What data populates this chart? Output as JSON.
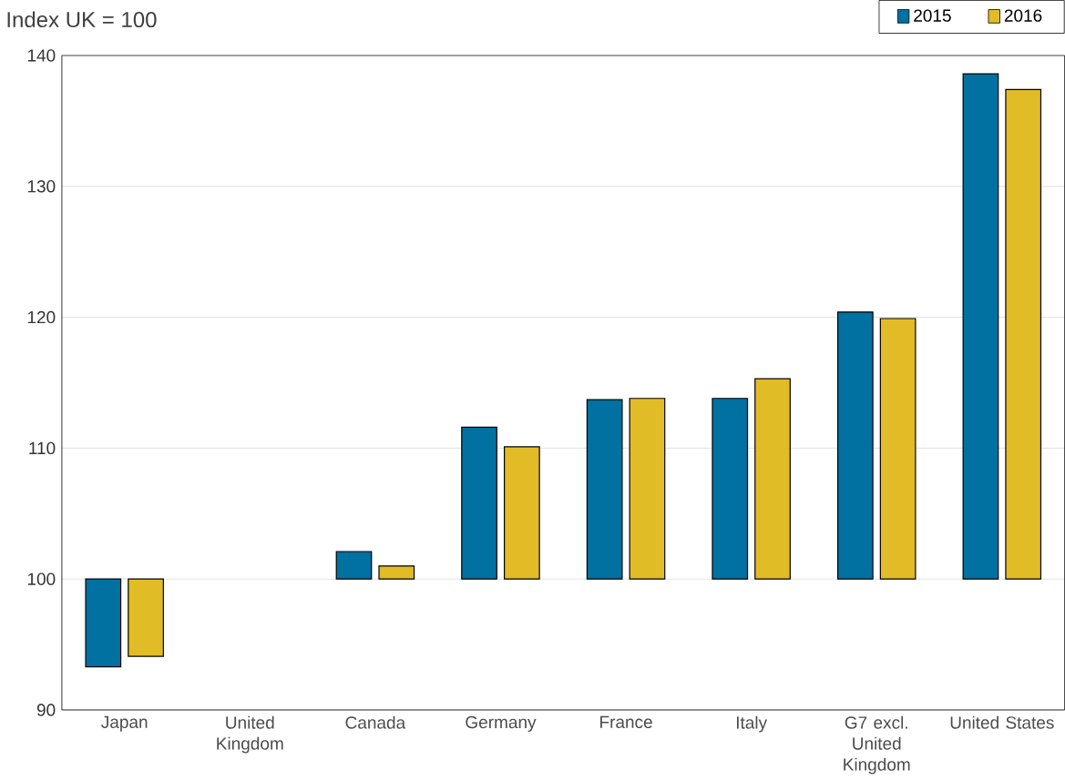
{
  "chart_data": {
    "type": "bar",
    "ylabel": "Index UK = 100",
    "categories": [
      "Japan",
      "United Kingdom",
      "Canada",
      "Germany",
      "France",
      "Italy",
      "G7 excl. United Kingdom",
      "United States"
    ],
    "series": [
      {
        "name": "2015",
        "color": "#0071a0",
        "base": [
          100,
          null,
          100,
          100,
          100,
          100,
          100,
          100
        ],
        "values": [
          -6.7,
          null,
          2.1,
          11.6,
          13.7,
          13.8,
          20.4,
          38.6
        ]
      },
      {
        "name": "2016",
        "color": "#e2bc26",
        "base": [
          100,
          null,
          100,
          100,
          100,
          100,
          100,
          100
        ],
        "values": [
          -5.9,
          null,
          1.0,
          10.1,
          13.8,
          15.3,
          19.9,
          37.4
        ]
      }
    ],
    "ylim": [
      90,
      140
    ],
    "yticks": [
      90,
      100,
      110,
      120,
      130,
      140
    ],
    "grid": "y",
    "legend": "top right"
  }
}
